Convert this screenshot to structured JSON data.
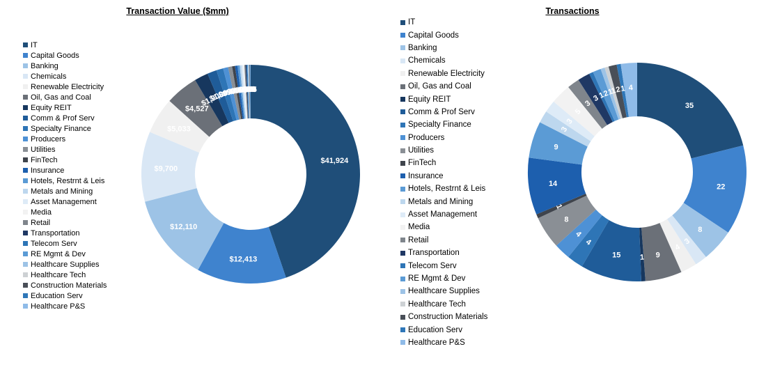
{
  "categories": [
    "IT",
    "Capital Goods",
    "Banking",
    "Chemicals",
    "Renewable Electricity",
    "Oil, Gas and Coal",
    "Equity REIT",
    "Comm & Prof Serv",
    "Specialty Finance",
    "Producers",
    "Utilities",
    "FinTech",
    "Insurance",
    "Hotels, Restrnt & Leis",
    "Metals and Mining",
    "Asset Management",
    "Media",
    "Retail",
    "Transportation",
    "Telecom Serv",
    "RE Mgmt & Dev",
    "Healthcare Supplies",
    "Healthcare Tech",
    "Construction Materials",
    "Education Serv",
    "Healthcare P&S"
  ],
  "palette": [
    "#1F4E79",
    "#3F83CE",
    "#9DC3E6",
    "#D9E7F5",
    "#F0F0F0",
    "#6B7078",
    "#17375E",
    "#1F5C99",
    "#2E75B6",
    "#4E91D5",
    "#8A8F95",
    "#3F444C",
    "#1D5FAE",
    "#5B9BD5",
    "#BDD7EE",
    "#DEEBF7",
    "#F2F2F2",
    "#7F858C",
    "#1F3864",
    "#2E75B6",
    "#5B9BD5",
    "#9DC3E6",
    "#CDD1D4",
    "#494F58",
    "#2F77B8",
    "#8FBBE8"
  ],
  "chart_data": [
    {
      "type": "pie",
      "subtype": "donut",
      "title": "Transaction Value ($mm)",
      "legend_position": "left",
      "categories": [
        "IT",
        "Capital Goods",
        "Banking",
        "Chemicals",
        "Renewable Electricity",
        "Oil, Gas and Coal",
        "Equity REIT",
        "Comm & Prof Serv",
        "Specialty Finance",
        "Producers",
        "Utilities",
        "FinTech",
        "Insurance",
        "Hotels, Restrnt & Leis",
        "Metals and Mining",
        "Asset Management",
        "Media",
        "Retail",
        "Transportation",
        "Telecom Serv",
        "RE Mgmt & Dev",
        "Healthcare Supplies",
        "Healthcare Tech",
        "Construction Materials",
        "Education Serv",
        "Healthcare P&S"
      ],
      "values": [
        41924,
        12413,
        12110,
        9700,
        5033,
        4527,
        1900,
        1300,
        950,
        700,
        550,
        400,
        350,
        300,
        250,
        210,
        180,
        155,
        130,
        110,
        95,
        85,
        80,
        75,
        70,
        65
      ],
      "labels": [
        "$41,924",
        "$12,413",
        "$12,110",
        "$9,700",
        "$5,033",
        "$4,527",
        "$1,900",
        "$1,300",
        "$950",
        "$700",
        "$550",
        "$400",
        "$350",
        "$300",
        "$250",
        "$210",
        "$180",
        "$155",
        "$130",
        "$110",
        "$95",
        "$85",
        "$80",
        "$75",
        "$70",
        "$65"
      ]
    },
    {
      "type": "pie",
      "subtype": "donut",
      "title": "Transactions",
      "legend_position": "left",
      "categories": [
        "IT",
        "Capital Goods",
        "Banking",
        "Chemicals",
        "Renewable Electricity",
        "Oil, Gas and Coal",
        "Equity REIT",
        "Comm & Prof Serv",
        "Specialty Finance",
        "Producers",
        "Utilities",
        "FinTech",
        "Insurance",
        "Hotels, Restrnt & Leis",
        "Metals and Mining",
        "Asset Management",
        "Media",
        "Retail",
        "Transportation",
        "Telecom Serv",
        "RE Mgmt & Dev",
        "Healthcare Supplies",
        "Healthcare Tech",
        "Construction Materials",
        "Education Serv",
        "Healthcare P&S"
      ],
      "values": [
        35,
        22,
        8,
        3,
        4,
        9,
        1,
        15,
        4,
        4,
        8,
        1,
        14,
        9,
        3,
        3,
        5,
        3,
        3,
        1,
        2,
        1,
        1,
        2,
        1,
        4
      ],
      "labels": [
        "35",
        "22",
        "8",
        "3",
        "4",
        "9",
        "1",
        "15",
        "4",
        "4",
        "8",
        "1",
        "14",
        "9",
        "3",
        "3",
        "5",
        "3",
        "3",
        "1",
        "2",
        "1",
        "1",
        "2",
        "1",
        "4"
      ]
    }
  ]
}
